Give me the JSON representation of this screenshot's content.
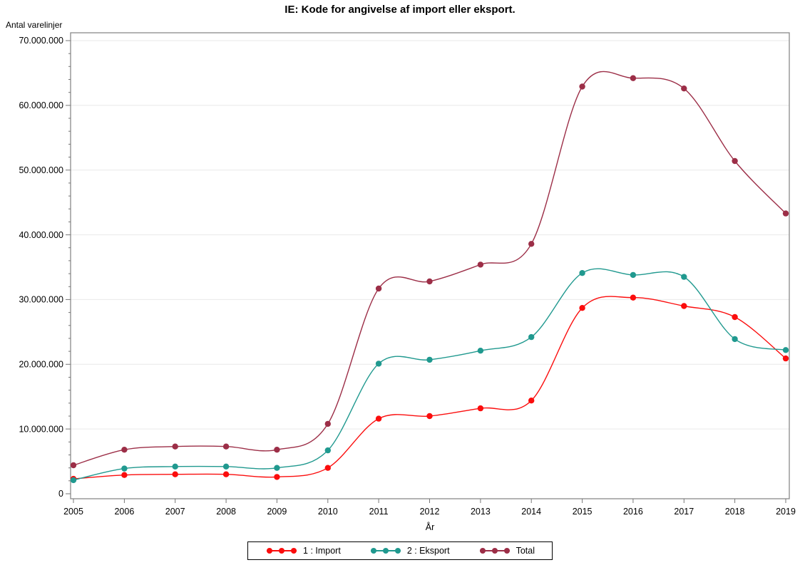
{
  "chart_data": {
    "type": "line",
    "title": "IE: Kode for angivelse af import eller eksport.",
    "xlabel": "År",
    "ylabel": "Antal varelinjer",
    "x": [
      2005,
      2006,
      2007,
      2008,
      2009,
      2010,
      2011,
      2012,
      2013,
      2014,
      2015,
      2016,
      2017,
      2018,
      2019
    ],
    "series": [
      {
        "name": "1 : Import",
        "color": "#fb0d0d",
        "values": [
          2300000,
          2900000,
          3000000,
          3000000,
          2600000,
          4000000,
          11600000,
          12000000,
          13200000,
          14400000,
          28700000,
          30300000,
          29000000,
          27300000,
          20900000
        ]
      },
      {
        "name": "2 : Eksport",
        "color": "#20998f",
        "values": [
          2100000,
          3900000,
          4200000,
          4200000,
          4000000,
          6700000,
          20100000,
          20700000,
          22100000,
          24200000,
          34100000,
          33800000,
          33500000,
          23900000,
          22200000
        ]
      },
      {
        "name": "Total",
        "color": "#9c2e47",
        "values": [
          4400000,
          6800000,
          7300000,
          7300000,
          6800000,
          10800000,
          31700000,
          32800000,
          35400000,
          38600000,
          62900000,
          64200000,
          62600000,
          51400000,
          43300000
        ]
      }
    ],
    "ylim": [
      0,
      70000000
    ],
    "ytick_step": 10000000,
    "ytick_minor_step": 2000000,
    "ytick_labels": [
      "0",
      "10.000.000",
      "20.000.000",
      "30.000.000",
      "40.000.000",
      "50.000.000",
      "60.000.000",
      "70.000.000"
    ],
    "xtick_labels": [
      "2005",
      "2006",
      "2007",
      "2008",
      "2009",
      "2010",
      "2011",
      "2012",
      "2013",
      "2014",
      "2015",
      "2016",
      "2017",
      "2018",
      "2019"
    ],
    "grid": "horizontal-major",
    "legend_position": "bottom",
    "colors": {
      "frame": "#8a8a8a",
      "gridline": "#e9e9e9",
      "tick": "#777777",
      "text": "#000000",
      "background": "#ffffff"
    }
  }
}
